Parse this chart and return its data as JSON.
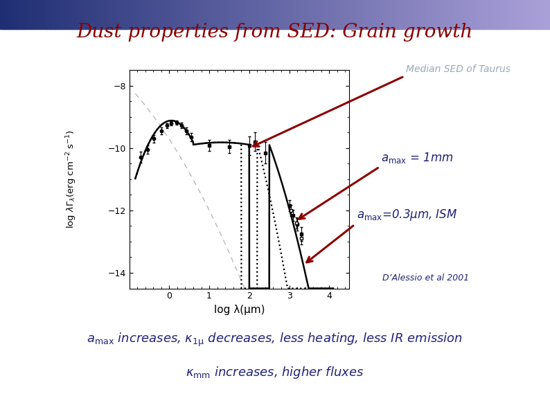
{
  "title": "Dust properties from SED: Grain growth",
  "title_color": "#8B0000",
  "title_fontsize": 20,
  "xlabel": "log λ(μm)",
  "xlim": [
    -1,
    4.5
  ],
  "ylim": [
    -14.5,
    -7.5
  ],
  "xticks": [
    0,
    1,
    2,
    3,
    4
  ],
  "yticks": [
    -14,
    -12,
    -10,
    -8
  ],
  "ytick_labels": [
    "−14",
    "−12",
    "−10",
    "−8"
  ],
  "annotation_median": "Median SED of Taurus",
  "annotation_dalessio": "D’Alessio et al 2001",
  "background_color": "#ffffff",
  "header_color": "#2e3b6e",
  "ann_color_median": "#99aabb",
  "ann_color_labels": "#22227a",
  "arrow_color": "#8B0000"
}
